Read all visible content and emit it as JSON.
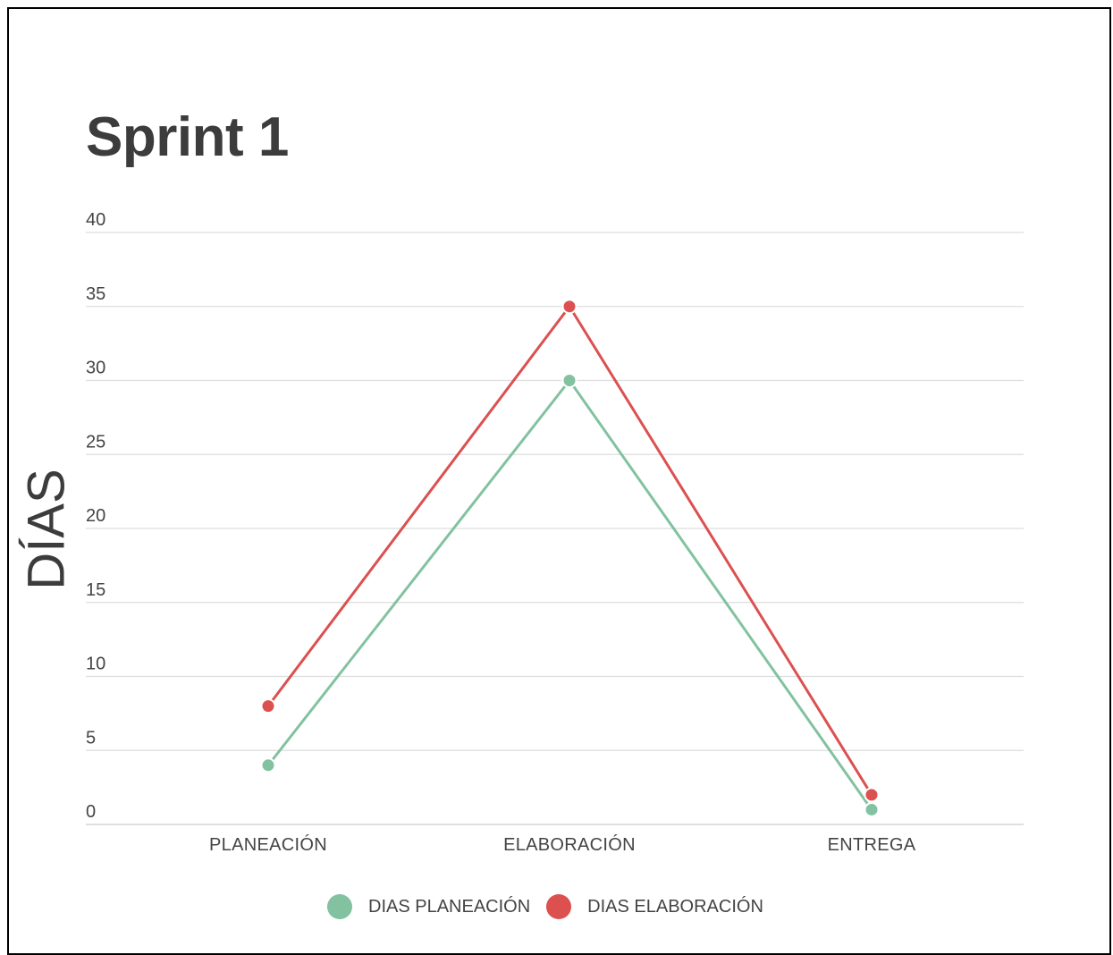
{
  "chart_data": {
    "type": "line",
    "title": "Sprint 1",
    "xlabel": "",
    "ylabel": "DÍAS",
    "categories": [
      "PLANEACIÓN",
      "ELABORACIÓN",
      "ENTREGA"
    ],
    "ylim": [
      0,
      40
    ],
    "yticks": [
      0,
      5,
      10,
      15,
      20,
      25,
      30,
      35,
      40
    ],
    "grid": true,
    "legend_position": "bottom",
    "series": [
      {
        "name": "DIAS PLANEACIÓN",
        "values": [
          4,
          30,
          1
        ],
        "color": "#82c2a0"
      },
      {
        "name": "DIAS ELABORACIÓN",
        "values": [
          8,
          35,
          2
        ],
        "color": "#dc5050"
      }
    ]
  }
}
